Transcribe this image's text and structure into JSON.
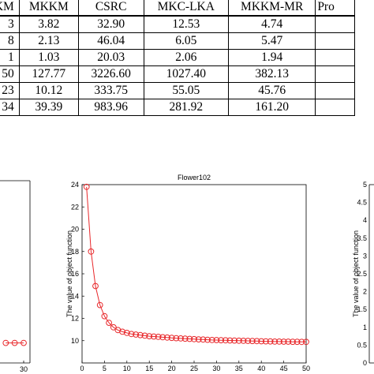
{
  "table": {
    "headers": [
      "KM",
      "MKKM",
      "CSRC",
      "MKC-LKA",
      "MKKM-MR",
      "Pro"
    ],
    "rows": [
      [
        "3",
        "3.82",
        "32.90",
        "12.53",
        "4.74",
        ""
      ],
      [
        "8",
        "2.13",
        "46.04",
        "6.05",
        "5.47",
        ""
      ],
      [
        "1",
        "1.03",
        "20.03",
        "2.06",
        "1.94",
        ""
      ],
      [
        "50",
        "127.77",
        "3226.60",
        "1027.40",
        "382.13",
        ""
      ],
      [
        "23",
        "10.12",
        "333.75",
        "55.05",
        "45.76",
        ""
      ],
      [
        "34",
        "39.39",
        "983.96",
        "281.92",
        "161.20",
        ""
      ]
    ]
  },
  "charts": {
    "left": {
      "x_ticks": [
        "30"
      ]
    },
    "middle": {
      "title": "Flower102",
      "ylabel": "The value of object function",
      "x_ticks": [
        "0",
        "5",
        "10",
        "15",
        "20",
        "25",
        "30",
        "35",
        "40",
        "45",
        "50"
      ],
      "y_ticks": [
        "10",
        "12",
        "14",
        "16",
        "18",
        "20",
        "22",
        "24"
      ]
    },
    "right": {
      "ylabel": "The value of object function",
      "y_ticks": [
        "0",
        "0.5",
        "1",
        "1.5",
        "2",
        "2.5",
        "3",
        "3.5",
        "4",
        "4.5",
        "5"
      ]
    }
  },
  "chart_data": [
    {
      "type": "line",
      "title": "",
      "xlabel": "",
      "ylabel": "",
      "x": [
        26,
        28,
        30
      ],
      "series": [
        {
          "values": [
            9.8,
            9.8,
            9.8
          ]
        }
      ],
      "color": "#e8282b",
      "marker": "circle"
    },
    {
      "type": "line",
      "title": "Flower102",
      "xlabel": "",
      "ylabel": "The value of object function",
      "xlim": [
        0,
        50
      ],
      "ylim": [
        8,
        24
      ],
      "grid": false,
      "color": "#e8282b",
      "marker": "circle",
      "x": [
        1,
        2,
        3,
        4,
        5,
        6,
        7,
        8,
        9,
        10,
        11,
        12,
        13,
        14,
        15,
        16,
        17,
        18,
        19,
        20,
        21,
        22,
        23,
        24,
        25,
        26,
        27,
        28,
        29,
        30,
        31,
        32,
        33,
        34,
        35,
        36,
        37,
        38,
        39,
        40,
        41,
        42,
        43,
        44,
        45,
        46,
        47,
        48,
        49,
        50
      ],
      "series": [
        {
          "values": [
            23.8,
            18.0,
            14.9,
            13.2,
            12.2,
            11.6,
            11.2,
            10.95,
            10.8,
            10.7,
            10.6,
            10.55,
            10.5,
            10.45,
            10.4,
            10.37,
            10.34,
            10.31,
            10.28,
            10.25,
            10.22,
            10.2,
            10.18,
            10.16,
            10.14,
            10.12,
            10.1,
            10.08,
            10.06,
            10.05,
            10.04,
            10.03,
            10.02,
            10.01,
            10.0,
            9.99,
            9.98,
            9.97,
            9.96,
            9.95,
            9.94,
            9.93,
            9.92,
            9.92,
            9.91,
            9.91,
            9.9,
            9.9,
            9.89,
            9.89
          ]
        }
      ]
    }
  ]
}
